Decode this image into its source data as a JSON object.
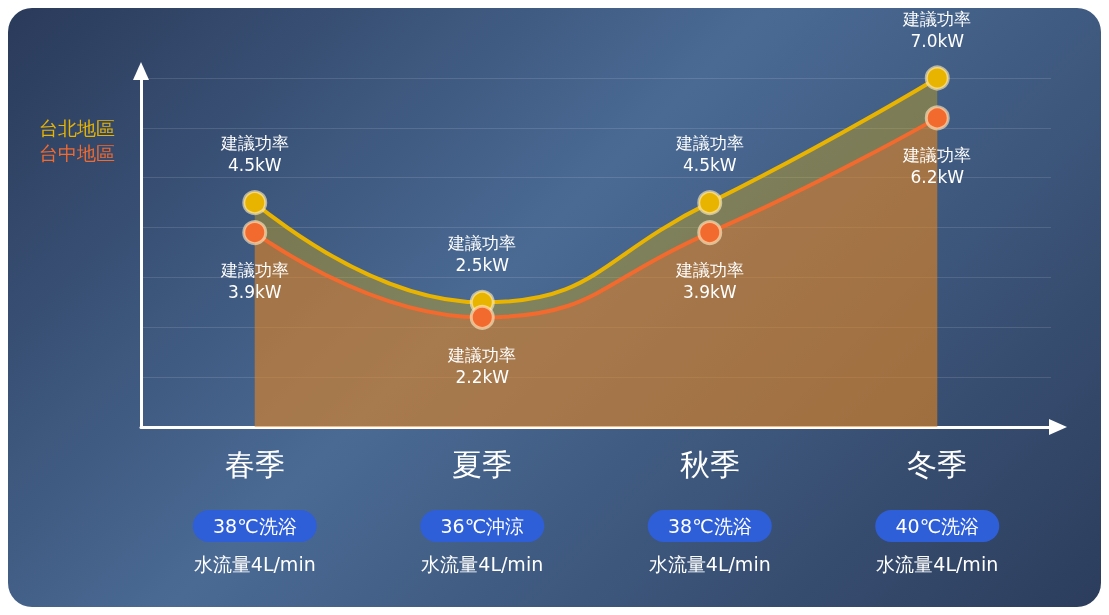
{
  "chart_data": {
    "type": "area",
    "categories": [
      "春季",
      "夏季",
      "秋季",
      "冬季"
    ],
    "series": [
      {
        "name": "台北地區",
        "color": "#e8b400",
        "values": [
          4.5,
          2.5,
          4.5,
          7.0
        ],
        "value_labels": [
          "建議功率\n4.5kW",
          "建議功率\n2.5kW",
          "建議功率\n4.5kW",
          "建議功率\n7.0kW"
        ]
      },
      {
        "name": "台中地區",
        "color": "#f26a2e",
        "values": [
          3.9,
          2.2,
          3.9,
          6.2
        ],
        "value_labels": [
          "建議功率\n3.9kW",
          "建議功率\n2.2kW",
          "建議功率\n3.9kW",
          "建議功率\n6.2kW"
        ]
      }
    ],
    "annotations": [
      "38℃洗浴",
      "水流量4L/min",
      "36℃沖涼",
      "水流量4L/min",
      "38℃洗浴",
      "水流量4L/min",
      "40℃洗浴",
      "水流量4L/min"
    ],
    "legend": "top left",
    "grid": "y",
    "marker": "circle",
    "tick_labels": "x"
  }
}
